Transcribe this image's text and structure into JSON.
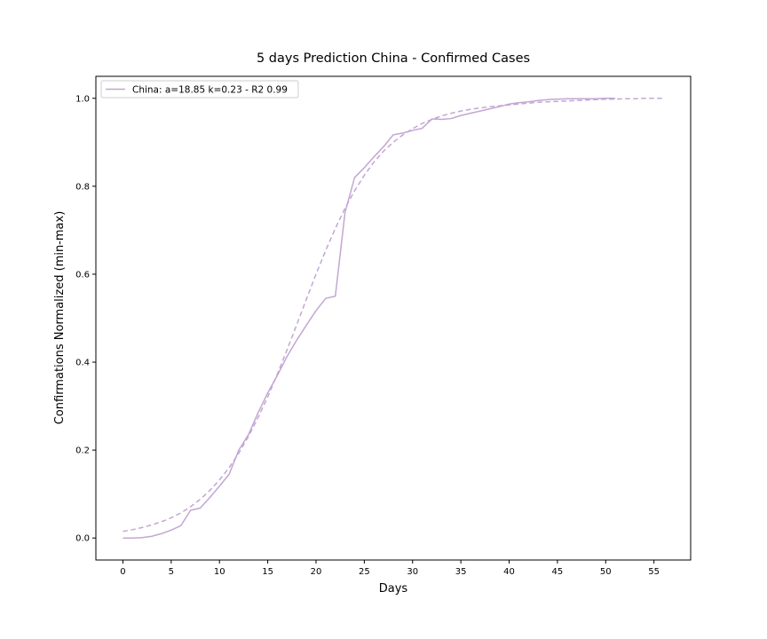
{
  "chart_data": {
    "type": "line",
    "title": "5 days Prediction China - Confirmed Cases",
    "xlabel": "Days",
    "ylabel": "Confirmations Normalized (min-max)",
    "xlim": [
      -2.8,
      58.8
    ],
    "ylim": [
      -0.05,
      1.05
    ],
    "xticks": [
      "0",
      "5",
      "10",
      "15",
      "20",
      "25",
      "30",
      "35",
      "40",
      "45",
      "50",
      "55"
    ],
    "yticks": [
      "0.0",
      "0.2",
      "0.4",
      "0.6",
      "0.8",
      "1.0"
    ],
    "grid": false,
    "legend_position": "top-left",
    "legend": [
      "China: a=18.85 k=0.23 - R2 0.99"
    ],
    "colors": {
      "series": "#c3a6d4",
      "axis": "#000000"
    },
    "series": [
      {
        "name": "China: a=18.85 k=0.23 - R2 0.99",
        "style": "solid",
        "x": [
          0,
          1,
          2,
          3,
          4,
          5,
          6,
          7,
          8,
          9,
          10,
          11,
          12,
          13,
          14,
          15,
          16,
          17,
          18,
          19,
          20,
          21,
          22,
          23,
          24,
          25,
          26,
          27,
          28,
          29,
          30,
          31,
          32,
          33,
          34,
          35,
          36,
          37,
          38,
          39,
          40,
          41,
          42,
          43,
          44,
          45,
          46,
          47,
          48,
          49,
          50,
          51
        ],
        "y": [
          0.0,
          0.0,
          0.001,
          0.004,
          0.01,
          0.018,
          0.028,
          0.063,
          0.068,
          0.092,
          0.118,
          0.145,
          0.2,
          0.235,
          0.285,
          0.33,
          0.37,
          0.413,
          0.45,
          0.484,
          0.517,
          0.545,
          0.55,
          0.74,
          0.82,
          0.842,
          0.867,
          0.89,
          0.917,
          0.921,
          0.927,
          0.932,
          0.953,
          0.952,
          0.954,
          0.961,
          0.966,
          0.971,
          0.976,
          0.981,
          0.987,
          0.99,
          0.992,
          0.995,
          0.997,
          0.998,
          0.999,
          0.999,
          0.999,
          0.999,
          1.0,
          1.0
        ]
      },
      {
        "style": "dashed",
        "x": [
          0,
          1,
          2,
          3,
          4,
          5,
          6,
          7,
          8,
          9,
          10,
          11,
          12,
          13,
          14,
          15,
          16,
          17,
          18,
          19,
          20,
          21,
          22,
          23,
          24,
          25,
          26,
          27,
          28,
          29,
          30,
          31,
          32,
          33,
          34,
          35,
          36,
          37,
          38,
          39,
          40,
          41,
          42,
          43,
          44,
          45,
          46,
          47,
          48,
          49,
          50,
          51,
          52,
          53,
          54,
          55,
          56
        ],
        "y": [
          0.015,
          0.019,
          0.024,
          0.03,
          0.037,
          0.046,
          0.057,
          0.071,
          0.088,
          0.108,
          0.132,
          0.16,
          0.193,
          0.231,
          0.274,
          0.321,
          0.373,
          0.428,
          0.485,
          0.543,
          0.6,
          0.654,
          0.704,
          0.75,
          0.79,
          0.825,
          0.855,
          0.88,
          0.9,
          0.917,
          0.931,
          0.943,
          0.952,
          0.96,
          0.966,
          0.971,
          0.975,
          0.978,
          0.981,
          0.983,
          0.985,
          0.987,
          0.989,
          0.991,
          0.992,
          0.993,
          0.994,
          0.995,
          0.996,
          0.997,
          0.998,
          0.998,
          0.999,
          0.999,
          1.0,
          1.0,
          1.0
        ]
      }
    ]
  }
}
